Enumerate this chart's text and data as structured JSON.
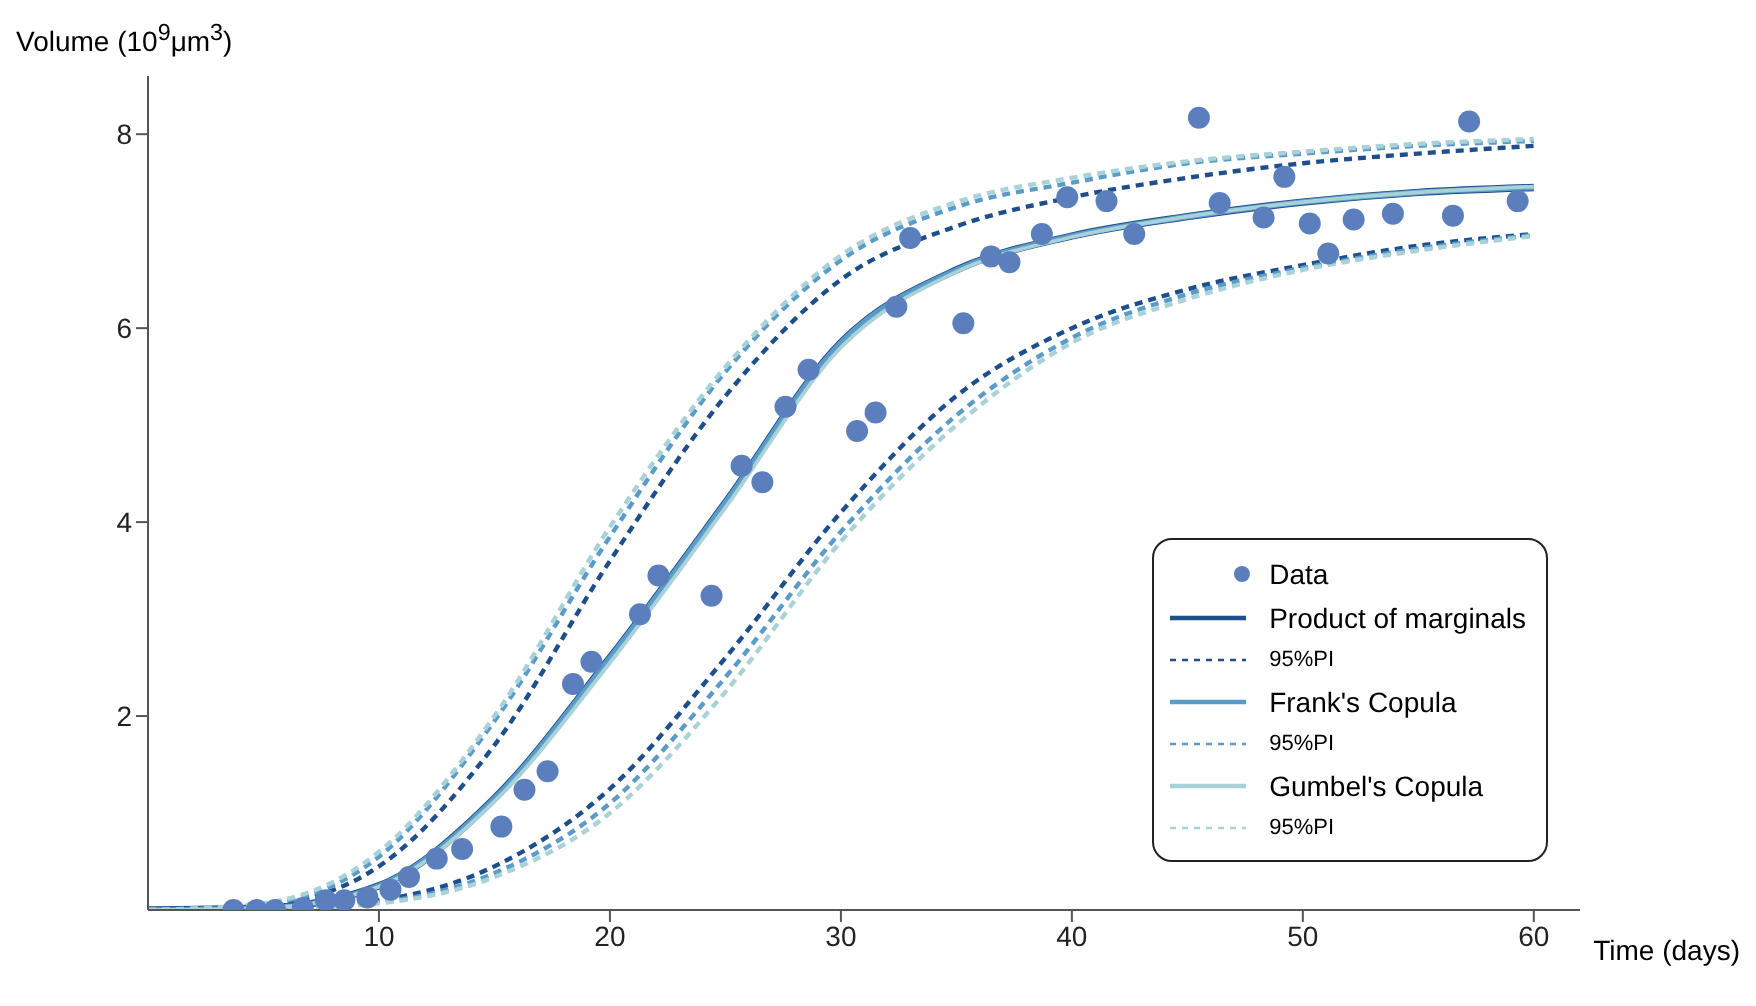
{
  "chart_data": {
    "type": "line",
    "xlabel": "Time (days)",
    "ylabel": "Volume (10$^{9}$μm$^{3}$)",
    "xlim": [
      0,
      62
    ],
    "ylim": [
      0,
      8.6
    ],
    "xticks": [
      10,
      20,
      30,
      40,
      50,
      60
    ],
    "yticks": [
      2,
      4,
      6,
      8
    ],
    "grid": false,
    "legend": "bottom right",
    "marker": "none",
    "x": [
      0,
      5,
      10,
      15,
      20,
      25,
      30,
      35,
      40,
      45,
      50,
      55,
      60
    ],
    "series": [
      {
        "name": "Data",
        "type": "scatter",
        "marker": "circle",
        "color": "#5b7fbd",
        "x": [
          3.7,
          4.7,
          5.5,
          6.7,
          7.7,
          8.5,
          9.5,
          10.5,
          11.3,
          12.5,
          13.6,
          15.3,
          16.3,
          17.3,
          18.4,
          19.2,
          21.3,
          22.1,
          24.4,
          25.7,
          26.6,
          27.6,
          28.6,
          30.7,
          31.5,
          32.4,
          33.0,
          35.3,
          36.5,
          37.3,
          38.7,
          39.8,
          41.5,
          42.7,
          45.5,
          46.4,
          48.3,
          49.2,
          50.3,
          51.1,
          52.2,
          53.9,
          56.5,
          57.2,
          59.3
        ],
        "values": [
          0,
          0,
          0,
          0.02,
          0.1,
          0.1,
          0.13,
          0.21,
          0.34,
          0.53,
          0.63,
          0.86,
          1.24,
          1.43,
          2.33,
          2.56,
          3.05,
          3.45,
          3.24,
          4.58,
          4.41,
          5.19,
          5.57,
          4.94,
          5.13,
          6.22,
          6.93,
          6.05,
          6.74,
          6.68,
          6.97,
          7.35,
          7.31,
          6.97,
          8.17,
          7.29,
          7.14,
          7.56,
          7.08,
          6.77,
          7.12,
          7.18,
          7.16,
          8.13,
          7.31
        ]
      },
      {
        "name": "Product of marginals",
        "color": "#1f4e8c",
        "line_style": "solid",
        "values": [
          0,
          0.02,
          0.25,
          1.15,
          2.6,
          4.2,
          5.85,
          6.6,
          6.95,
          7.15,
          7.3,
          7.4,
          7.45
        ]
      },
      {
        "name": "95%PI",
        "color": "#1f4e8c",
        "line_style": "dashed",
        "values": [
          0,
          0.05,
          0.45,
          1.7,
          3.6,
          5.3,
          6.5,
          7.05,
          7.35,
          7.55,
          7.7,
          7.8,
          7.88
        ]
      },
      {
        "color": "#1f4e8c",
        "line_style": "dashed",
        "values": [
          0,
          0.01,
          0.1,
          0.45,
          1.25,
          2.6,
          4.1,
          5.3,
          6.0,
          6.4,
          6.65,
          6.85,
          6.97
        ]
      },
      {
        "name": "Frank's Copula",
        "color": "#5a9bc8",
        "line_style": "solid",
        "values": [
          0,
          0.02,
          0.25,
          1.15,
          2.6,
          4.2,
          5.85,
          6.6,
          6.95,
          7.15,
          7.3,
          7.4,
          7.45
        ]
      },
      {
        "name": "95%PI",
        "color": "#5a9bc8",
        "line_style": "dashed",
        "values": [
          0,
          0.06,
          0.55,
          1.95,
          3.85,
          5.55,
          6.7,
          7.25,
          7.5,
          7.7,
          7.8,
          7.88,
          7.93
        ]
      },
      {
        "color": "#5a9bc8",
        "line_style": "dashed",
        "values": [
          0,
          0.01,
          0.08,
          0.38,
          1.1,
          2.4,
          3.9,
          5.1,
          5.9,
          6.35,
          6.62,
          6.82,
          6.96
        ]
      },
      {
        "name": "Gumbel's Copula",
        "color": "#a8d2d8",
        "line_style": "solid",
        "values": [
          0,
          0.02,
          0.24,
          1.12,
          2.55,
          4.15,
          5.8,
          6.58,
          6.94,
          7.15,
          7.3,
          7.4,
          7.46
        ]
      },
      {
        "name": "95%PI",
        "color": "#a8d2d8",
        "line_style": "dashed",
        "values": [
          0,
          0.07,
          0.6,
          2.0,
          3.95,
          5.6,
          6.75,
          7.3,
          7.55,
          7.72,
          7.82,
          7.9,
          7.95
        ]
      },
      {
        "color": "#a8d2d8",
        "line_style": "dashed",
        "values": [
          0,
          0.01,
          0.07,
          0.34,
          1.0,
          2.25,
          3.8,
          5.0,
          5.85,
          6.3,
          6.6,
          6.8,
          6.95
        ]
      }
    ]
  }
}
